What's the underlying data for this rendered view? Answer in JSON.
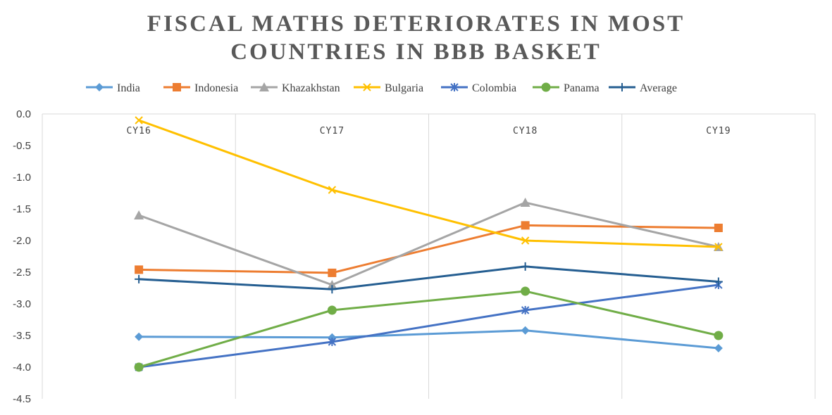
{
  "chart_data": {
    "type": "line",
    "title_lines": [
      "FISCAL MATHS DETERIORATES IN MOST",
      "COUNTRIES IN BBB BASKET"
    ],
    "categories": [
      "CY16",
      "CY17",
      "CY18",
      "CY19"
    ],
    "ylim": [
      -4.5,
      0.0
    ],
    "yticks": [
      "0.0",
      "-0.5",
      "-1.0",
      "-1.5",
      "-2.0",
      "-2.5",
      "-3.0",
      "-3.5",
      "-4.0",
      "-4.5"
    ],
    "ytick_values": [
      0.0,
      -0.5,
      -1.0,
      -1.5,
      -2.0,
      -2.5,
      -3.0,
      -3.5,
      -4.0,
      -4.5
    ],
    "grid": "vertical",
    "legend_position": "top",
    "series": [
      {
        "name": "India",
        "color": "#5B9BD5",
        "marker": "diamond",
        "values": [
          -3.52,
          -3.53,
          -3.42,
          -3.7
        ]
      },
      {
        "name": "Indonesia",
        "color": "#ED7D31",
        "marker": "square",
        "values": [
          -2.46,
          -2.51,
          -1.76,
          -1.8
        ]
      },
      {
        "name": "Khazakhstan",
        "color": "#A5A5A5",
        "marker": "triangle",
        "values": [
          -1.6,
          -2.7,
          -1.4,
          -2.1
        ]
      },
      {
        "name": "Bulgaria",
        "color": "#FFC000",
        "marker": "x",
        "values": [
          -0.1,
          -1.2,
          -2.0,
          -2.1
        ]
      },
      {
        "name": "Colombia",
        "color": "#4472C4",
        "marker": "star",
        "values": [
          -4.0,
          -3.6,
          -3.1,
          -2.7
        ]
      },
      {
        "name": "Panama",
        "color": "#70AD47",
        "marker": "circle",
        "values": [
          -4.0,
          -3.1,
          -2.8,
          -3.5
        ]
      },
      {
        "name": "Average",
        "color": "#255E91",
        "marker": "plus",
        "values": [
          -2.61,
          -2.77,
          -2.41,
          -2.65
        ]
      }
    ]
  }
}
